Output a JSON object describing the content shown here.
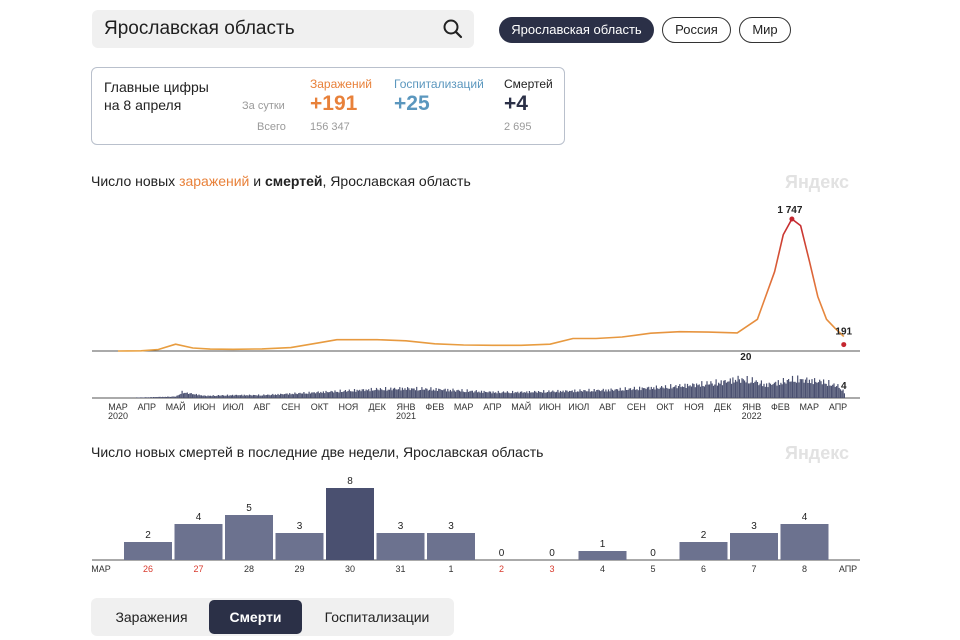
{
  "search": {
    "query": "Ярославская область"
  },
  "regions": [
    "Ярославская область",
    "Россия",
    "Мир"
  ],
  "active_region": "Ярославская область",
  "stats": {
    "title": "Главные цифры\nна 8 апреля",
    "row_day": "За сутки",
    "row_total": "Всего",
    "infections": {
      "label": "Заражений",
      "day": "+191",
      "total": "156 347",
      "color": "#e8813a"
    },
    "hospitalizations": {
      "label": "Госпитализаций",
      "day": "+25",
      "total": "",
      "color": "#5b97be"
    },
    "deaths": {
      "label": "Смертей",
      "day": "+4",
      "total": "2 695",
      "color": "#2b3047"
    }
  },
  "chart1": {
    "title_p1": "Число новых ",
    "title_p2": "заражений",
    "title_p3": " и ",
    "title_p4": "смертей",
    "title_p5": ", Ярославская область",
    "watermark": "Яндекс"
  },
  "chart2": {
    "title": "Число новых смертей в последние две недели, Ярославская область",
    "watermark": "Яндекс"
  },
  "tabs": [
    "Заражения",
    "Смерти",
    "Госпитализации"
  ],
  "active_tab": "Смерти",
  "chart_data": [
    {
      "type": "line",
      "title": "Число новых заражений и смертей, Ярославская область",
      "x_ticks": [
        "МАР",
        "АПР",
        "МАЙ",
        "ИЮН",
        "ИЮЛ",
        "АВГ",
        "СЕН",
        "ОКТ",
        "НОЯ",
        "ДЕК",
        "ЯНВ",
        "ФЕВ",
        "МАР",
        "АПР",
        "МАЙ",
        "ИЮН",
        "ИЮЛ",
        "АВГ",
        "СЕН",
        "ОКТ",
        "НОЯ",
        "ДЕК",
        "ЯНВ",
        "ФЕВ",
        "МАР",
        "АПР"
      ],
      "year_labels": [
        {
          "tick": 0,
          "text": "2020"
        },
        {
          "tick": 10,
          "text": "2021"
        },
        {
          "tick": 22,
          "text": "2022"
        }
      ],
      "series": [
        {
          "name": "заражений",
          "color": "#e8a040",
          "peak_color": "#c4262f",
          "x": [
            0,
            0.8,
            1.4,
            2.0,
            2.6,
            3.2,
            4,
            5,
            6,
            7,
            7.6,
            8.2,
            9,
            10,
            11,
            12,
            13,
            14,
            15,
            15.8,
            16.6,
            17.5,
            18.5,
            19.5,
            20.5,
            21.5,
            22.2,
            22.8,
            23.1,
            23.4,
            23.7,
            24.0,
            24.3,
            24.6,
            24.9,
            25.2
          ],
          "values": [
            0,
            2,
            20,
            90,
            40,
            25,
            22,
            28,
            45,
            110,
            150,
            150,
            150,
            135,
            95,
            80,
            75,
            75,
            90,
            165,
            165,
            185,
            235,
            255,
            250,
            240,
            420,
            1050,
            1540,
            1747,
            1660,
            1200,
            720,
            420,
            300,
            191
          ],
          "labels": [
            {
              "x": 23.4,
              "value": 1747,
              "text": "1 747"
            },
            {
              "x": 25.2,
              "value": 191,
              "text": "191"
            }
          ]
        },
        {
          "name": "смертей",
          "color": "#4a5070",
          "type": "bar",
          "envelope_x": [
            0,
            1,
            2,
            2.2,
            3,
            4,
            5,
            6,
            7,
            8,
            9,
            10,
            11,
            12,
            13,
            14,
            15,
            16,
            17,
            18,
            19,
            20,
            21,
            21.5,
            22,
            22.5,
            23,
            23.5,
            24,
            24.5,
            25,
            25.2
          ],
          "envelope_values": [
            0,
            0.5,
            1,
            4,
            1.5,
            2,
            2,
            3,
            4,
            5,
            6,
            6.5,
            6,
            5,
            4,
            4,
            4.5,
            5,
            5.5,
            6.5,
            7.5,
            9,
            11,
            13,
            12,
            9,
            11,
            13,
            12,
            11,
            8,
            4
          ],
          "labels": [
            {
              "x": 21.8,
              "value": 20,
              "text": "20"
            },
            {
              "x": 25.2,
              "value": 4,
              "text": "4"
            }
          ]
        }
      ]
    },
    {
      "type": "bar",
      "title": "Число новых смертей в последние две недели, Ярославская область",
      "categories": [
        "26",
        "27",
        "28",
        "29",
        "30",
        "31",
        "1",
        "2",
        "3",
        "4",
        "5",
        "6",
        "7",
        "8"
      ],
      "values": [
        2,
        4,
        5,
        3,
        8,
        3,
        3,
        0,
        0,
        1,
        0,
        2,
        3,
        4
      ],
      "weekend": [
        true,
        true,
        false,
        false,
        false,
        false,
        false,
        true,
        true,
        false,
        false,
        false,
        false,
        false
      ],
      "highlight_index": 4,
      "month_start": "МАР",
      "month_end": "АПР",
      "color": "#6c728f",
      "highlight_color": "#4a5070",
      "weekend_label_color": "#d83a2e"
    }
  ]
}
